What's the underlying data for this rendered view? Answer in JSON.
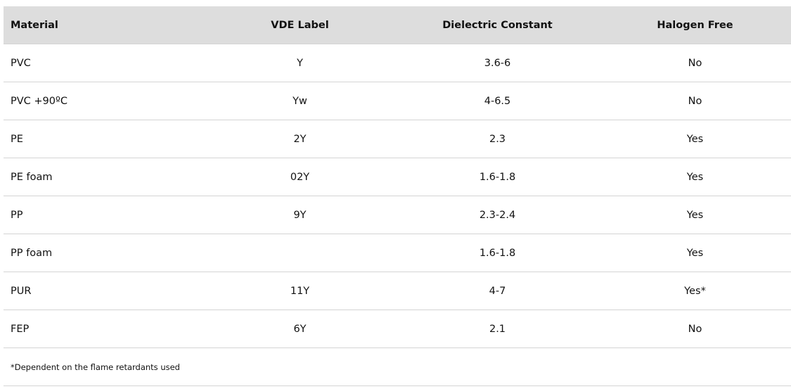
{
  "table": {
    "headers": [
      "Material",
      "VDE Label",
      "Dielectric Constant",
      "Halogen Free"
    ],
    "rows": [
      [
        "PVC",
        "Y",
        "3.6-6",
        "No"
      ],
      [
        "PVC +90ºC",
        "Yw",
        "4-6.5",
        "No"
      ],
      [
        "PE",
        "2Y",
        "2.3",
        "Yes"
      ],
      [
        "PE foam",
        "02Y",
        "1.6-1.8",
        "Yes"
      ],
      [
        "PP",
        "9Y",
        "2.3-2.4",
        "Yes"
      ],
      [
        "PP foam",
        "",
        "1.6-1.8",
        "Yes"
      ],
      [
        "PUR",
        "11Y",
        "4-7",
        "Yes*"
      ],
      [
        "FEP",
        "6Y",
        "2.1",
        "No"
      ]
    ],
    "footnote": "*Dependent on the flame retardants used"
  },
  "colors": {
    "header_bg": "#dddddd",
    "border": "#d4d4d4"
  }
}
